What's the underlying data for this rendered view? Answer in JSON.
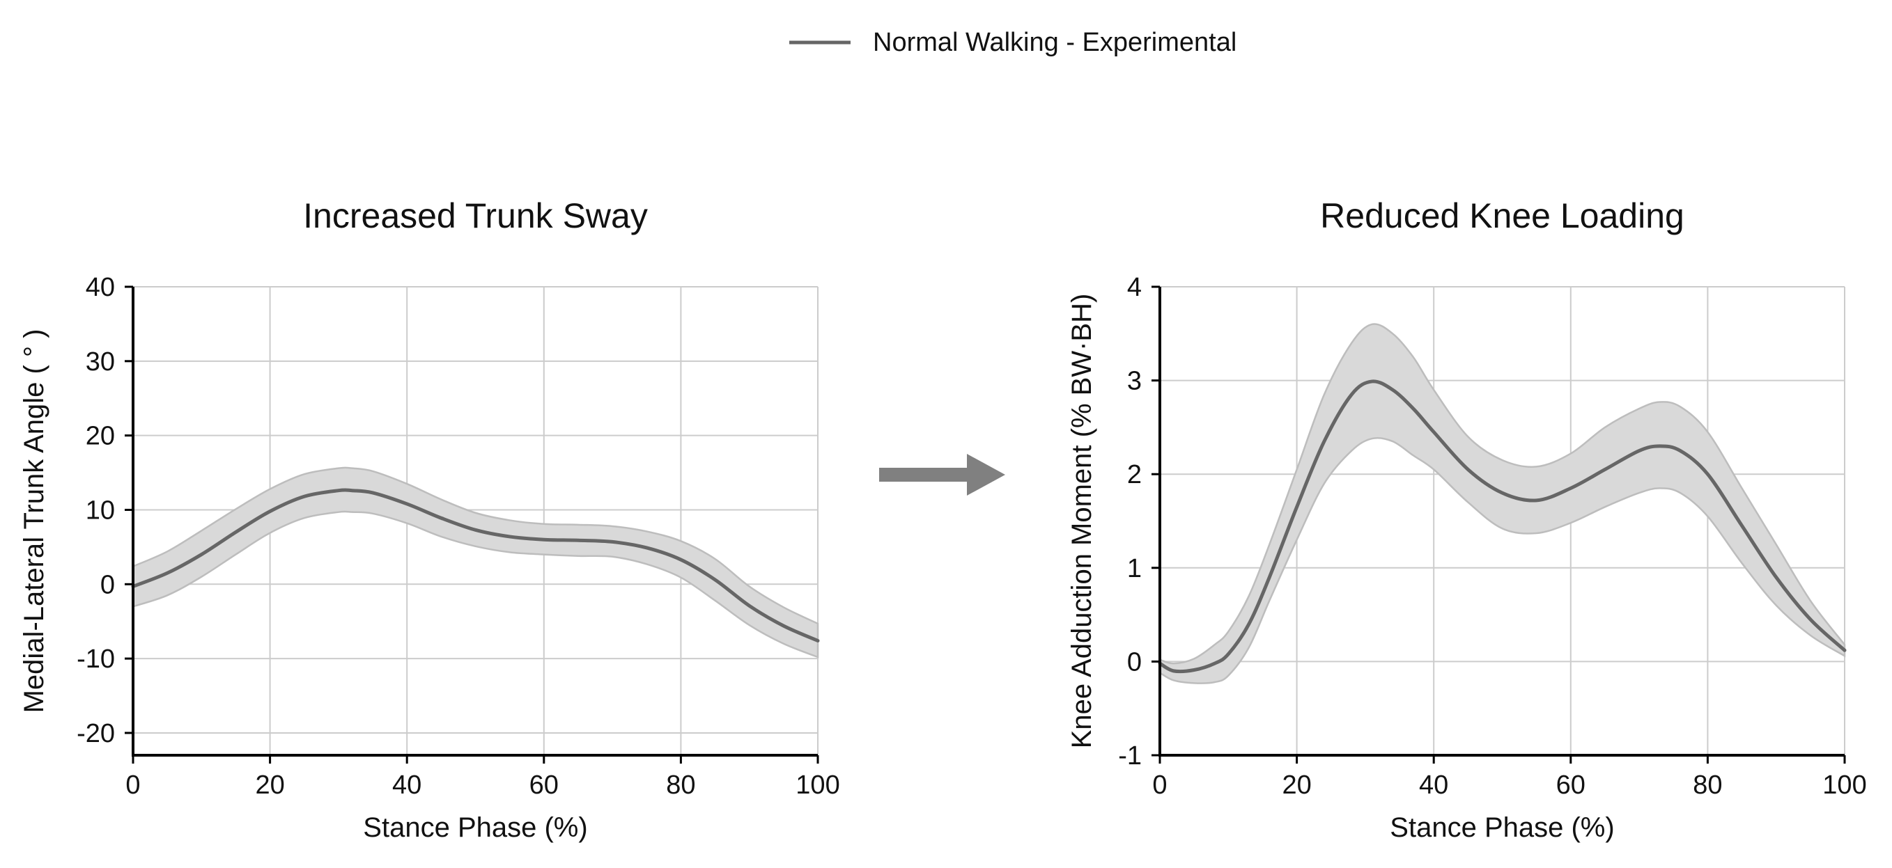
{
  "legend": {
    "label": "Normal Walking - Experimental",
    "color": "#666666",
    "placement": "top-center"
  },
  "arrow": {
    "icon": "right-arrow-icon",
    "color": "#808080"
  },
  "colors": {
    "line": "#666666",
    "band_fill": "#d9d9d9",
    "band_edge": "#bdbdbd",
    "grid": "#cccccc",
    "axis": "#000000"
  },
  "chart_data": [
    {
      "type": "line",
      "title": "Increased Trunk Sway",
      "xlabel": "Stance Phase (%)",
      "ylabel": "Medial-Lateral Trunk Angle ( ° )",
      "xlim": [
        0,
        100
      ],
      "ylim": [
        -23,
        40
      ],
      "xticks": [
        0,
        20,
        40,
        60,
        80,
        100
      ],
      "yticks": [
        -20,
        -10,
        0,
        10,
        20,
        30,
        40
      ],
      "grid": true,
      "series": [
        {
          "name": "Normal Walking - Experimental",
          "x": [
            0,
            5,
            10,
            15,
            20,
            25,
            30,
            32,
            35,
            40,
            45,
            50,
            55,
            60,
            65,
            70,
            75,
            80,
            85,
            90,
            95,
            100
          ],
          "y": [
            -0.3,
            1.5,
            4.0,
            7.0,
            9.8,
            11.8,
            12.6,
            12.6,
            12.3,
            10.8,
            8.9,
            7.3,
            6.4,
            6.0,
            5.9,
            5.7,
            4.9,
            3.3,
            0.6,
            -2.9,
            -5.6,
            -7.6
          ],
          "lower": [
            -3.0,
            -1.5,
            1.0,
            4.0,
            6.9,
            8.9,
            9.7,
            9.7,
            9.5,
            8.2,
            6.4,
            5.1,
            4.3,
            4.0,
            3.8,
            3.7,
            2.7,
            0.9,
            -2.2,
            -5.5,
            -8.0,
            -9.8
          ],
          "upper": [
            2.4,
            4.4,
            7.2,
            10.1,
            12.8,
            14.8,
            15.6,
            15.6,
            15.2,
            13.5,
            11.4,
            9.6,
            8.6,
            8.1,
            8.0,
            7.8,
            7.1,
            5.8,
            3.4,
            -0.3,
            -3.1,
            -5.3
          ]
        }
      ]
    },
    {
      "type": "line",
      "title": "Reduced Knee Loading",
      "xlabel": "Stance Phase (%)",
      "ylabel": "Knee Adduction Moment (% BW·BH)",
      "xlim": [
        0,
        100
      ],
      "ylim": [
        -1,
        4
      ],
      "xticks": [
        0,
        20,
        40,
        60,
        80,
        100
      ],
      "yticks": [
        -1,
        0,
        1,
        2,
        3,
        4
      ],
      "grid": true,
      "series": [
        {
          "name": "Normal Walking - Experimental",
          "x": [
            0,
            2,
            5,
            8,
            10,
            13,
            16,
            20,
            24,
            28,
            31,
            34,
            37,
            40,
            45,
            50,
            55,
            60,
            65,
            70,
            73,
            76,
            80,
            85,
            90,
            95,
            100
          ],
          "y": [
            -0.02,
            -0.1,
            -0.09,
            -0.02,
            0.08,
            0.4,
            0.9,
            1.65,
            2.35,
            2.85,
            2.99,
            2.9,
            2.7,
            2.45,
            2.05,
            1.8,
            1.72,
            1.85,
            2.05,
            2.25,
            2.3,
            2.25,
            2.0,
            1.45,
            0.9,
            0.45,
            0.12
          ],
          "lower": [
            -0.12,
            -0.2,
            -0.23,
            -0.22,
            -0.15,
            0.15,
            0.65,
            1.3,
            1.9,
            2.25,
            2.38,
            2.35,
            2.2,
            2.05,
            1.7,
            1.42,
            1.37,
            1.48,
            1.65,
            1.8,
            1.85,
            1.8,
            1.55,
            1.05,
            0.6,
            0.28,
            0.06
          ],
          "upper": [
            0.02,
            -0.02,
            0.03,
            0.18,
            0.32,
            0.7,
            1.25,
            2.05,
            2.85,
            3.4,
            3.6,
            3.5,
            3.25,
            2.9,
            2.4,
            2.15,
            2.08,
            2.22,
            2.5,
            2.7,
            2.77,
            2.72,
            2.45,
            1.85,
            1.25,
            0.65,
            0.18
          ]
        }
      ]
    }
  ]
}
